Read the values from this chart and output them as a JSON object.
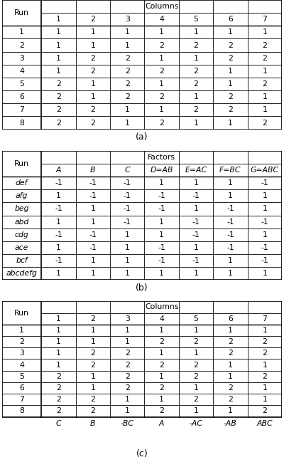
{
  "table_a": {
    "header_top": "Columns",
    "col_headers": [
      "1",
      "2",
      "3",
      "4",
      "5",
      "6",
      "7"
    ],
    "row_label": "Run",
    "row_names": [
      "1",
      "2",
      "3",
      "4",
      "5",
      "6",
      "7",
      "8"
    ],
    "data": [
      [
        1,
        1,
        1,
        1,
        1,
        1,
        1
      ],
      [
        1,
        1,
        1,
        2,
        2,
        2,
        2
      ],
      [
        1,
        2,
        2,
        1,
        1,
        2,
        2
      ],
      [
        1,
        2,
        2,
        2,
        2,
        1,
        1
      ],
      [
        2,
        1,
        2,
        1,
        2,
        1,
        2
      ],
      [
        2,
        1,
        2,
        2,
        1,
        2,
        1
      ],
      [
        2,
        2,
        1,
        1,
        2,
        2,
        1
      ],
      [
        2,
        2,
        1,
        2,
        1,
        1,
        2
      ]
    ],
    "caption": "(a)"
  },
  "table_b": {
    "header_top": "Factors",
    "col_headers": [
      "A",
      "B",
      "C",
      "D=AB",
      "E=AC",
      "F=BC",
      "G=ABC"
    ],
    "col_headers_italic": [
      true,
      true,
      true,
      true,
      true,
      true,
      true
    ],
    "row_label": "Run",
    "row_names": [
      "def",
      "afg",
      "beg",
      "abd",
      "cdg",
      "ace",
      "bcf",
      "abcdefg"
    ],
    "row_names_italic": [
      true,
      true,
      true,
      true,
      true,
      true,
      true,
      true
    ],
    "data": [
      [
        -1,
        -1,
        -1,
        1,
        1,
        1,
        -1
      ],
      [
        1,
        -1,
        -1,
        -1,
        -1,
        1,
        1
      ],
      [
        -1,
        1,
        -1,
        -1,
        1,
        -1,
        1
      ],
      [
        1,
        1,
        -1,
        1,
        -1,
        -1,
        -1
      ],
      [
        -1,
        -1,
        1,
        1,
        -1,
        -1,
        1
      ],
      [
        1,
        -1,
        1,
        -1,
        1,
        -1,
        -1
      ],
      [
        -1,
        1,
        1,
        -1,
        -1,
        1,
        -1
      ],
      [
        1,
        1,
        1,
        1,
        1,
        1,
        1
      ]
    ],
    "caption": "(b)"
  },
  "table_c": {
    "header_top": "Columns",
    "col_headers": [
      "1",
      "2",
      "3",
      "4",
      "5",
      "6",
      "7"
    ],
    "row_label": "Run",
    "row_names": [
      "1",
      "2",
      "3",
      "4",
      "5",
      "6",
      "7",
      "8"
    ],
    "data": [
      [
        1,
        1,
        1,
        1,
        1,
        1,
        1
      ],
      [
        1,
        1,
        1,
        2,
        2,
        2,
        2
      ],
      [
        1,
        2,
        2,
        1,
        1,
        2,
        2
      ],
      [
        1,
        2,
        2,
        2,
        2,
        1,
        1
      ],
      [
        2,
        1,
        2,
        1,
        2,
        1,
        2
      ],
      [
        2,
        1,
        2,
        2,
        1,
        2,
        1
      ],
      [
        2,
        2,
        1,
        1,
        2,
        2,
        1
      ],
      [
        2,
        2,
        1,
        2,
        1,
        1,
        2
      ]
    ],
    "bottom_labels": [
      "C",
      "B",
      "-BC",
      "A",
      "-AC",
      "-AB",
      "ABC"
    ],
    "bottom_italic": [
      true,
      true,
      true,
      true,
      true,
      true,
      true
    ],
    "caption": "(c)"
  }
}
